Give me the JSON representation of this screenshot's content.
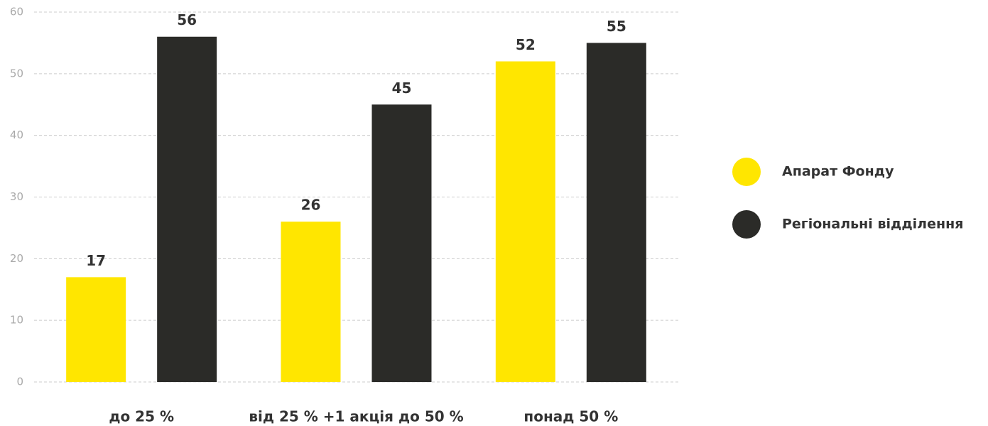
{
  "chart_data": {
    "type": "bar",
    "categories": [
      "до 25 %",
      "від 25 % +1 акція до 50 %",
      "понад 50 %"
    ],
    "series": [
      {
        "name": "Апарат Фонду",
        "color": "#ffe600",
        "values": [
          17,
          26,
          52
        ]
      },
      {
        "name": "Регіональні відділення",
        "color": "#2b2b28",
        "values": [
          56,
          45,
          55
        ]
      }
    ],
    "ylim": [
      0,
      60
    ],
    "yticks": [
      0,
      10,
      20,
      30,
      40,
      50,
      60
    ],
    "grid": true,
    "legend": "right"
  }
}
